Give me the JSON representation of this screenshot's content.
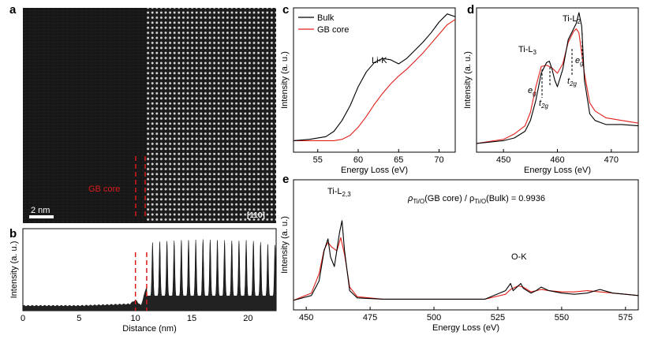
{
  "colors": {
    "bulk": "#000000",
    "gb_core": "#e0201b",
    "accent_red": "#d81b1b",
    "image_bg": "#141414"
  },
  "panel_labels": {
    "a": "a",
    "b": "b",
    "c": "c",
    "d": "d",
    "e": "e"
  },
  "panel_a": {
    "scale_bar": "2 nm",
    "zone_axis": "[110]",
    "gb_label": "GB core"
  },
  "chart_data": [
    {
      "id": "b",
      "type": "area",
      "xlabel": "Distance (nm)",
      "ylabel": "Intensity (a. u.)",
      "xlim": [
        0,
        22.5
      ],
      "ylim": [
        0,
        1
      ],
      "xticks": [
        "0",
        "5",
        "10",
        "15",
        "20"
      ],
      "series": [
        {
          "x": [
            0,
            5,
            9.5,
            10.0,
            10.5,
            11.0,
            11.4,
            12.0,
            13.0,
            14.0,
            15.0,
            16.0,
            17.0,
            18.0,
            19.0,
            20.0,
            21.0,
            22.0
          ],
          "values": [
            0.06,
            0.06,
            0.08,
            0.13,
            0.06,
            0.3,
            0.83,
            0.84,
            0.85,
            0.86,
            0.86,
            0.87,
            0.86,
            0.86,
            0.85,
            0.86,
            0.84,
            0.8
          ]
        }
      ],
      "gb_lines_x": [
        10.0,
        11.0
      ]
    },
    {
      "id": "c",
      "type": "line",
      "xlabel": "Energy Loss (eV)",
      "ylabel": "Intensity (a. u.)",
      "xlim": [
        52,
        72
      ],
      "ylim": [
        0,
        1
      ],
      "xticks": [
        "55",
        "60",
        "65",
        "70"
      ],
      "legend": [
        "Bulk",
        "GB core"
      ],
      "annotation": "Li-K",
      "series": [
        {
          "name": "Bulk",
          "x": [
            52,
            54,
            56,
            57,
            58,
            59,
            60,
            61,
            62,
            63,
            64,
            65,
            66,
            67,
            68,
            69,
            70,
            71,
            72
          ],
          "values": [
            0.05,
            0.06,
            0.08,
            0.12,
            0.2,
            0.31,
            0.45,
            0.56,
            0.63,
            0.66,
            0.65,
            0.62,
            0.66,
            0.72,
            0.78,
            0.85,
            0.93,
            0.99,
            0.97
          ]
        },
        {
          "name": "GB core",
          "x": [
            52,
            54,
            56,
            57,
            58,
            59,
            60,
            61,
            62,
            63,
            64,
            65,
            66,
            67,
            68,
            69,
            70,
            71,
            72
          ],
          "values": [
            0.05,
            0.05,
            0.05,
            0.05,
            0.06,
            0.09,
            0.15,
            0.23,
            0.32,
            0.4,
            0.47,
            0.53,
            0.58,
            0.64,
            0.7,
            0.77,
            0.84,
            0.91,
            0.95
          ]
        }
      ]
    },
    {
      "id": "d",
      "type": "line",
      "xlabel": "Energy Loss (eV)",
      "ylabel": "Intensity (a. u.)",
      "xlim": [
        445,
        475
      ],
      "ylim": [
        0,
        1
      ],
      "xticks": [
        "450",
        "460",
        "470"
      ],
      "annotations": {
        "ti_l3": "Ti-L",
        "ti_l3_sub": "3",
        "ti_l2": "Ti-L",
        "ti_l2_sub": "2",
        "eg1": "e",
        "eg1_sub": "g",
        "t2g1": "t",
        "t2g1_sub": "2g",
        "eg2": "e",
        "eg2_sub": "g",
        "t2g2": "t",
        "t2g2_sub": "2g"
      },
      "series": [
        {
          "name": "Bulk",
          "x": [
            445,
            450,
            452,
            454,
            455,
            456,
            457,
            458,
            458.5,
            459,
            459.5,
            460,
            461,
            462,
            463,
            463.5,
            464,
            464.5,
            465,
            466,
            467,
            469,
            472,
            475
          ],
          "values": [
            0.03,
            0.05,
            0.07,
            0.12,
            0.2,
            0.35,
            0.55,
            0.63,
            0.64,
            0.58,
            0.5,
            0.45,
            0.58,
            0.8,
            0.88,
            0.92,
            1.0,
            0.9,
            0.5,
            0.25,
            0.2,
            0.17,
            0.17,
            0.16
          ]
        },
        {
          "name": "GB core",
          "x": [
            445,
            450,
            452,
            454,
            455,
            456,
            457,
            458,
            459,
            460,
            461,
            462,
            463,
            463.5,
            464,
            465,
            466,
            467,
            469,
            472,
            475
          ],
          "values": [
            0.03,
            0.06,
            0.1,
            0.16,
            0.26,
            0.45,
            0.6,
            0.61,
            0.59,
            0.55,
            0.62,
            0.78,
            0.86,
            0.88,
            0.85,
            0.55,
            0.33,
            0.27,
            0.22,
            0.2,
            0.18
          ]
        }
      ]
    },
    {
      "id": "e",
      "type": "line",
      "xlabel": "Energy Loss (eV)",
      "ylabel": "Intensity (a. u.)",
      "xlim": [
        445,
        580
      ],
      "ylim": [
        0,
        1
      ],
      "xticks": [
        "450",
        "475",
        "500",
        "525",
        "550",
        "575"
      ],
      "annotations": {
        "ti_l23": "Ti-L",
        "ti_l23_sub": "2,3",
        "o_k": "O-K",
        "ratio": "ρ",
        "ratio_sub1": "Ti/O",
        "ratio_mid": "(GB core) / ρ",
        "ratio_sub2": "Ti/O",
        "ratio_end": "(Bulk) = 0.9936"
      },
      "series": [
        {
          "name": "Bulk",
          "x": [
            445,
            452,
            455,
            457,
            458.5,
            459.5,
            461,
            463,
            464,
            465,
            467,
            470,
            480,
            500,
            520,
            528,
            530,
            531,
            533,
            534,
            535,
            538,
            540,
            542,
            545,
            550,
            555,
            560,
            565,
            570,
            575,
            580
          ],
          "values": [
            0.04,
            0.08,
            0.2,
            0.45,
            0.55,
            0.4,
            0.32,
            0.6,
            0.7,
            0.45,
            0.12,
            0.06,
            0.05,
            0.05,
            0.05,
            0.12,
            0.18,
            0.12,
            0.16,
            0.18,
            0.14,
            0.1,
            0.12,
            0.15,
            0.12,
            0.1,
            0.09,
            0.1,
            0.13,
            0.1,
            0.09,
            0.08
          ]
        },
        {
          "name": "GB core",
          "x": [
            445,
            452,
            455,
            457,
            458.5,
            460,
            462,
            463.5,
            465,
            467,
            470,
            480,
            500,
            520,
            528,
            530,
            533,
            535,
            538,
            542,
            545,
            550,
            555,
            560,
            565,
            570,
            575,
            580
          ],
          "values": [
            0.04,
            0.1,
            0.26,
            0.46,
            0.52,
            0.48,
            0.45,
            0.56,
            0.42,
            0.15,
            0.07,
            0.05,
            0.05,
            0.05,
            0.09,
            0.13,
            0.16,
            0.15,
            0.11,
            0.13,
            0.12,
            0.11,
            0.11,
            0.12,
            0.11,
            0.1,
            0.09,
            0.08
          ]
        }
      ]
    }
  ]
}
